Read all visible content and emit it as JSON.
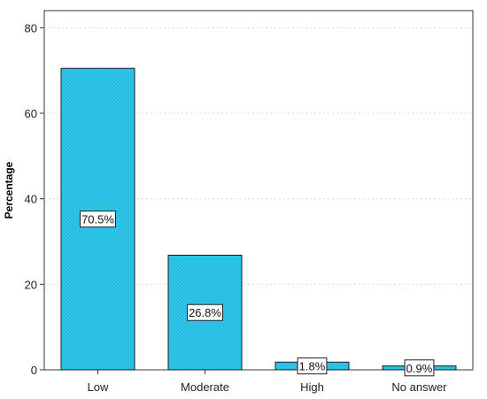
{
  "chart_data": {
    "type": "bar",
    "title": "",
    "xlabel": "",
    "ylabel": "Percentage",
    "categories": [
      "Low",
      "Moderate",
      "High",
      "No answer"
    ],
    "values": [
      70.5,
      26.8,
      1.8,
      0.9
    ],
    "data_labels": [
      "70.5%",
      "26.8%",
      "1.8%",
      "0.9%"
    ],
    "ylim": [
      0,
      84
    ],
    "yticks": [
      0,
      20,
      40,
      60,
      80
    ],
    "ytick_labels": [
      "0",
      "20",
      "40",
      "60",
      "80"
    ],
    "grid": "horizontal dotted",
    "legend": "none",
    "colors": {
      "bar_fill": "#2ec8ea",
      "bar_stroke": "#1a1a1a",
      "grid": "#d8d8d8",
      "axis": "#333333"
    }
  }
}
